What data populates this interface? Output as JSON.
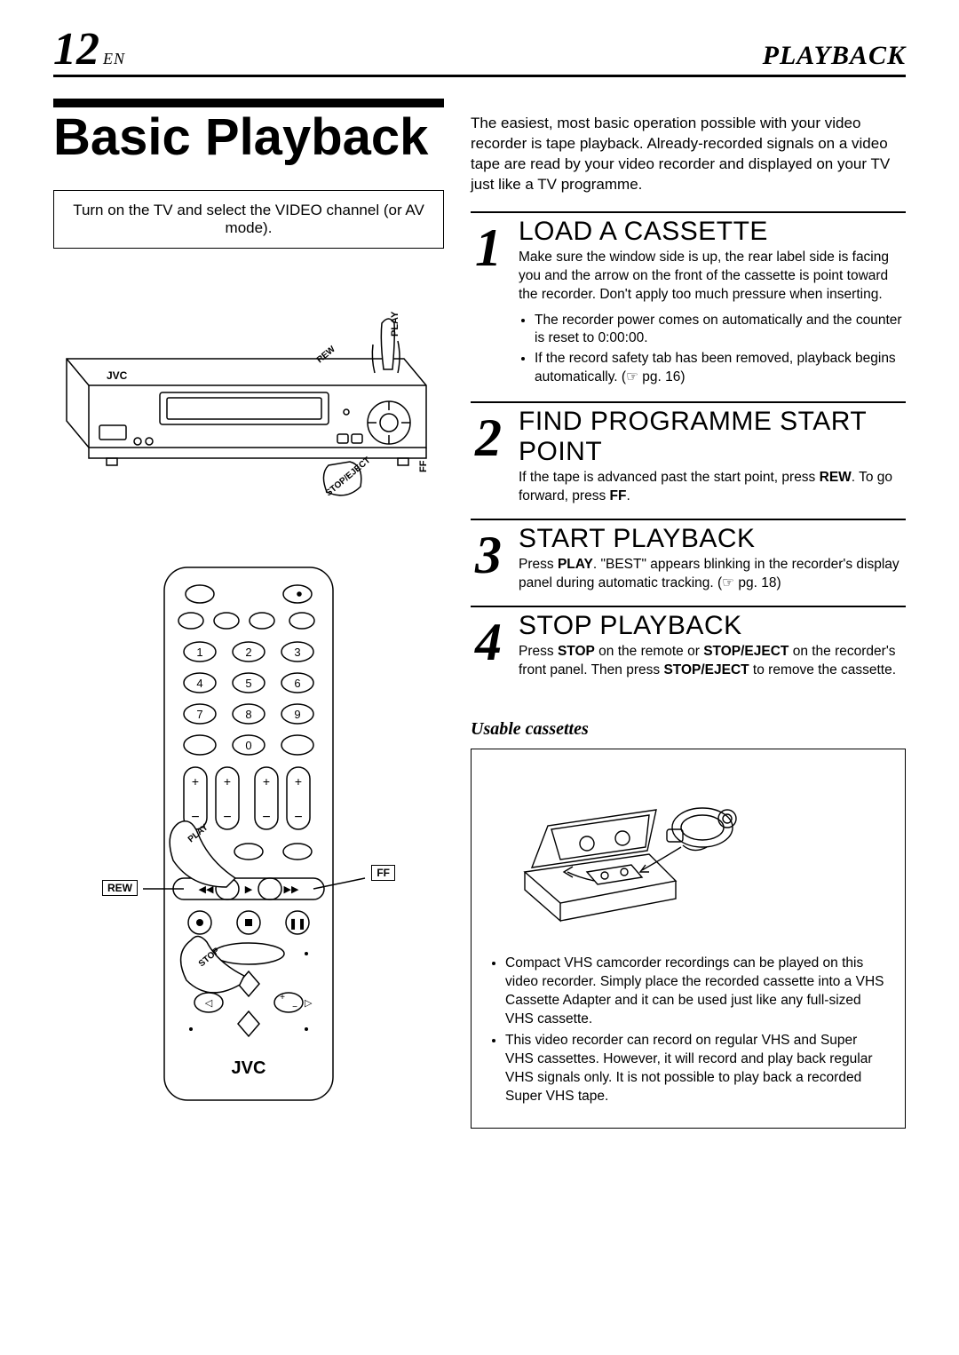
{
  "header": {
    "page_number": "12",
    "lang": "EN",
    "section": "PLAYBACK"
  },
  "main_title": "Basic Playback",
  "tv_instruction": "Turn on the TV and select the VIDEO channel (or AV mode).",
  "vcr_labels": {
    "brand": "JVC",
    "play": "PLAY",
    "rew": "REW",
    "ff": "FF",
    "stop_eject": "STOP/EJECT"
  },
  "remote_labels": {
    "rew": "REW",
    "ff": "FF",
    "play": "PLAY",
    "stop": "STOP",
    "brand": "JVC"
  },
  "intro": "The easiest, most basic operation possible with your video recorder is tape playback. Already-recorded signals on a video tape are read by your video recorder and displayed on your TV just like a TV programme.",
  "steps": [
    {
      "num": "1",
      "title": "LOAD A CASSETTE",
      "desc": "Make sure the window side is up, the rear label side is facing you and the arrow on the front of the cassette is point toward the recorder. Don't apply too much pressure when inserting.",
      "bullets": [
        "The recorder power comes on automatically and the counter is reset to 0:00:00.",
        "If the record safety tab has been removed, playback begins automatically. (☞ pg. 16)"
      ]
    },
    {
      "num": "2",
      "title": "FIND PROGRAMME START POINT",
      "desc_html": "If the tape is advanced past the start point, press <b>REW</b>. To go forward, press <b>FF</b>."
    },
    {
      "num": "3",
      "title": "START PLAYBACK",
      "desc_html": "Press <b>PLAY</b>. \"BEST\" appears blinking in the recorder's display panel during automatic tracking. (☞ pg. 18)"
    },
    {
      "num": "4",
      "title": "STOP PLAYBACK",
      "desc_html": "Press <b>STOP</b> on the remote or <b>STOP/EJECT</b> on the recorder's front panel. Then press <b>STOP/EJECT</b> to remove the cassette."
    }
  ],
  "usable": {
    "title": "Usable cassettes",
    "bullets": [
      "Compact VHS camcorder recordings can be played on this video recorder. Simply place the recorded cassette into a VHS Cassette Adapter and it can be used just like any full-sized VHS cassette.",
      "This video recorder can record on regular VHS and Super VHS cassettes. However, it will record and play back regular VHS signals only. It is not possible to play back a recorded Super VHS tape."
    ]
  }
}
